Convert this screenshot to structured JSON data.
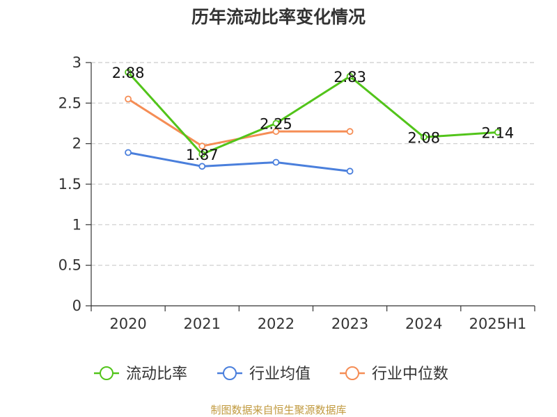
{
  "source_text": "制图数据来自恒生聚源数据库",
  "colors": {
    "source": "#c19a3f",
    "axis": "#333333",
    "grid": "#cccccc"
  },
  "chart_data": {
    "type": "line",
    "title": "历年流动比率变化情况",
    "xlabel": "",
    "ylabel": "",
    "categories": [
      "2020",
      "2021",
      "2022",
      "2023",
      "2024",
      "2025H1"
    ],
    "ylim": [
      0,
      3
    ],
    "yticks": [
      "0",
      "0.5",
      "1",
      "1.5",
      "2",
      "2.5",
      "3"
    ],
    "grid": "horizontal-dashed",
    "legend_position": "bottom",
    "series": [
      {
        "name": "流动比率",
        "color": "#52c41a",
        "values": [
          2.88,
          1.87,
          2.25,
          2.83,
          2.08,
          2.14
        ],
        "labels": [
          "2.88",
          "1.87",
          "2.25",
          "2.83",
          "2.08",
          "2.14"
        ]
      },
      {
        "name": "行业均值",
        "color": "#4a7fdc",
        "values": [
          1.89,
          1.72,
          1.77,
          1.66,
          null,
          null
        ]
      },
      {
        "name": "行业中位数",
        "color": "#f58d55",
        "values": [
          2.55,
          1.97,
          2.15,
          2.15,
          null,
          null
        ]
      }
    ]
  }
}
